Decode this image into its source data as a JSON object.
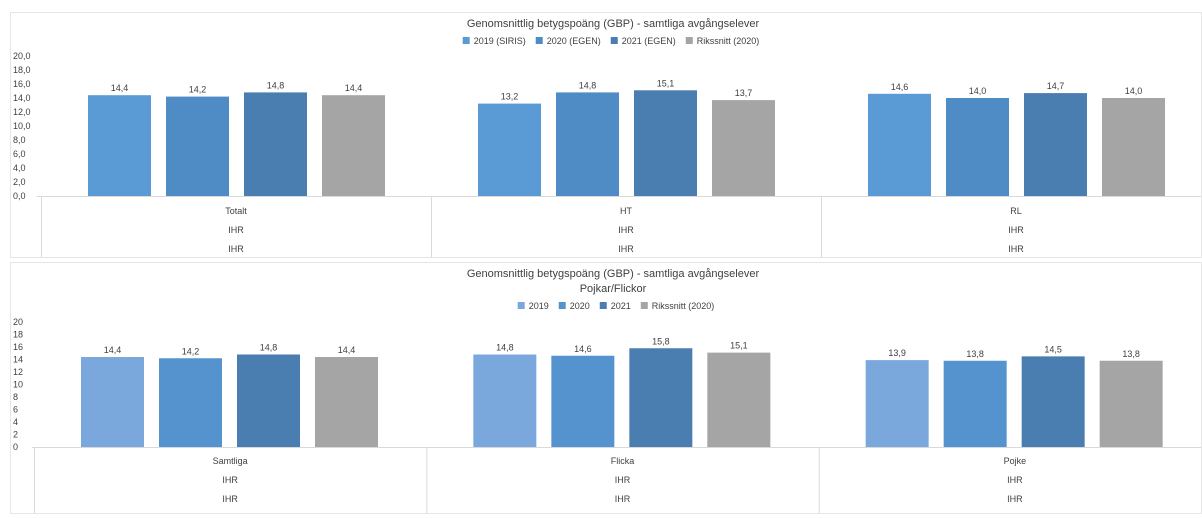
{
  "chart_data": [
    {
      "type": "bar",
      "title": "Genomsnittlig betygspoäng (GBP) - samtliga avgångselever",
      "subtitle": "",
      "categories": [
        "Totalt",
        "HT",
        "RL"
      ],
      "category_rows": [
        [
          "IHR",
          "IHR",
          "IHR"
        ],
        [
          "IHR",
          "IHR",
          "IHR"
        ]
      ],
      "series": [
        {
          "name": "2019 (SIRIS)",
          "values": [
            14.4,
            13.2,
            14.6
          ],
          "color": "#5b9bd5"
        },
        {
          "name": "2020 (EGEN)",
          "values": [
            14.2,
            14.8,
            14.0
          ],
          "color": "#4f8bc4"
        },
        {
          "name": "2021 (EGEN)",
          "values": [
            14.8,
            15.1,
            14.7
          ],
          "color": "#4a7eb0"
        },
        {
          "name": "Rikssnitt (2020)",
          "values": [
            14.4,
            13.7,
            14.0
          ],
          "color": "#a5a5a5"
        }
      ],
      "ylim": [
        0,
        20
      ],
      "yticks": [
        "0,0",
        "2,0",
        "4,0",
        "6,0",
        "8,0",
        "10,0",
        "12,0",
        "14,0",
        "16,0",
        "18,0",
        "20,0"
      ],
      "data_labels": [
        [
          "14,4",
          "13,2",
          "14,6"
        ],
        [
          "14,2",
          "14,8",
          "14,0"
        ],
        [
          "14,8",
          "15,1",
          "14,7"
        ],
        [
          "14,4",
          "13,7",
          "14,0"
        ]
      ],
      "legend": "top-center",
      "grid": false
    },
    {
      "type": "bar",
      "title": "Genomsnittlig betygspoäng (GBP) - samtliga avgångselever",
      "subtitle": "Pojkar/Flickor",
      "categories": [
        "Samtliga",
        "Flicka",
        "Pojke"
      ],
      "category_rows": [
        [
          "IHR",
          "IHR",
          "IHR"
        ],
        [
          "IHR",
          "IHR",
          "IHR"
        ]
      ],
      "series": [
        {
          "name": "2019",
          "values": [
            14.4,
            14.8,
            13.9
          ],
          "color": "#7aa8dc"
        },
        {
          "name": "2020",
          "values": [
            14.2,
            14.6,
            13.8
          ],
          "color": "#5593cf"
        },
        {
          "name": "2021",
          "values": [
            14.8,
            15.8,
            14.5
          ],
          "color": "#4a7eb0"
        },
        {
          "name": "Rikssnitt (2020)",
          "values": [
            14.4,
            15.1,
            13.8
          ],
          "color": "#a5a5a5"
        }
      ],
      "ylim": [
        0,
        20
      ],
      "yticks": [
        "0",
        "2",
        "4",
        "6",
        "8",
        "10",
        "12",
        "14",
        "16",
        "18",
        "20"
      ],
      "data_labels": [
        [
          "14,4",
          "14,8",
          "13,9"
        ],
        [
          "14,2",
          "14,6",
          "13,8"
        ],
        [
          "14,8",
          "15,8",
          "14,5"
        ],
        [
          "14,4",
          "15,1",
          "13,8"
        ]
      ],
      "legend": "top-center",
      "grid": false
    }
  ]
}
